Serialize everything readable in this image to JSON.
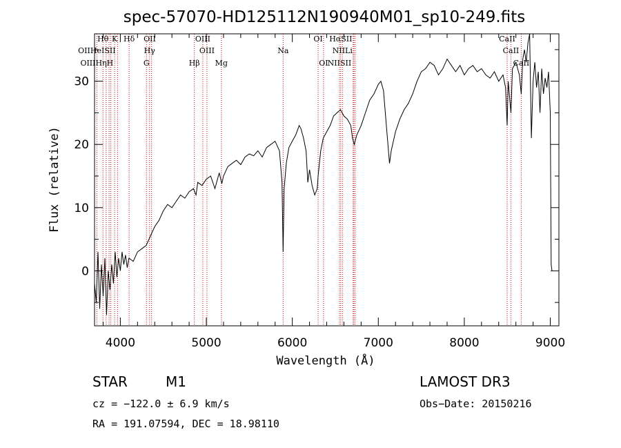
{
  "chart_data": {
    "type": "line",
    "title": "spec-57070-HD125112N190940M01_sp10-249.fits",
    "xlabel": "Wavelength (Å)",
    "ylabel": "Flux (relative)",
    "xlim": [
      3700,
      9100
    ],
    "ylim": [
      -8.7,
      37.5
    ],
    "xticks": [
      4000,
      5000,
      6000,
      7000,
      8000,
      9000
    ],
    "yticks": [
      0,
      10,
      20,
      30
    ],
    "grid": false,
    "legend": "none",
    "colors": {
      "spectrum": "#000000",
      "line_marker": "#cc0000",
      "axes": "#000000"
    },
    "spectrum_points": [
      [
        3700,
        -2
      ],
      [
        3720,
        -5
      ],
      [
        3740,
        3
      ],
      [
        3760,
        -6
      ],
      [
        3780,
        1
      ],
      [
        3800,
        -4
      ],
      [
        3820,
        2
      ],
      [
        3840,
        -7
      ],
      [
        3860,
        0
      ],
      [
        3880,
        -3
      ],
      [
        3900,
        1
      ],
      [
        3920,
        -2
      ],
      [
        3940,
        3
      ],
      [
        3960,
        -1
      ],
      [
        3980,
        2
      ],
      [
        4000,
        0
      ],
      [
        4020,
        3
      ],
      [
        4040,
        1
      ],
      [
        4060,
        2.5
      ],
      [
        4080,
        0.5
      ],
      [
        4100,
        2
      ],
      [
        4150,
        1.5
      ],
      [
        4200,
        3
      ],
      [
        4250,
        3.5
      ],
      [
        4300,
        4
      ],
      [
        4350,
        5.5
      ],
      [
        4400,
        7
      ],
      [
        4450,
        8
      ],
      [
        4500,
        9.5
      ],
      [
        4550,
        10.5
      ],
      [
        4600,
        10
      ],
      [
        4650,
        11
      ],
      [
        4700,
        12
      ],
      [
        4750,
        11.5
      ],
      [
        4800,
        12.5
      ],
      [
        4850,
        13
      ],
      [
        4880,
        12
      ],
      [
        4900,
        14
      ],
      [
        4950,
        13.5
      ],
      [
        5000,
        14.5
      ],
      [
        5050,
        15
      ],
      [
        5100,
        13
      ],
      [
        5150,
        15.5
      ],
      [
        5180,
        13.8
      ],
      [
        5200,
        15
      ],
      [
        5250,
        16.5
      ],
      [
        5300,
        17
      ],
      [
        5350,
        17.5
      ],
      [
        5400,
        16.8
      ],
      [
        5450,
        18
      ],
      [
        5500,
        18.5
      ],
      [
        5550,
        18.2
      ],
      [
        5600,
        19
      ],
      [
        5650,
        18
      ],
      [
        5700,
        19.5
      ],
      [
        5750,
        20
      ],
      [
        5800,
        20.5
      ],
      [
        5850,
        19
      ],
      [
        5880,
        14
      ],
      [
        5893,
        3
      ],
      [
        5905,
        13
      ],
      [
        5930,
        17
      ],
      [
        5960,
        19.5
      ],
      [
        6000,
        20.5
      ],
      [
        6040,
        21.5
      ],
      [
        6080,
        23
      ],
      [
        6100,
        22.5
      ],
      [
        6130,
        21
      ],
      [
        6160,
        19
      ],
      [
        6180,
        14
      ],
      [
        6200,
        16
      ],
      [
        6230,
        13.5
      ],
      [
        6260,
        12
      ],
      [
        6290,
        13
      ],
      [
        6300,
        15
      ],
      [
        6330,
        19
      ],
      [
        6360,
        21
      ],
      [
        6400,
        22
      ],
      [
        6440,
        23
      ],
      [
        6480,
        24.5
      ],
      [
        6520,
        25
      ],
      [
        6560,
        25.5
      ],
      [
        6600,
        24.5
      ],
      [
        6640,
        24
      ],
      [
        6680,
        23
      ],
      [
        6700,
        21
      ],
      [
        6720,
        20
      ],
      [
        6750,
        21.5
      ],
      [
        6800,
        23
      ],
      [
        6850,
        25
      ],
      [
        6900,
        27
      ],
      [
        6950,
        28
      ],
      [
        7000,
        29.5
      ],
      [
        7030,
        30
      ],
      [
        7060,
        28.5
      ],
      [
        7100,
        22
      ],
      [
        7130,
        17
      ],
      [
        7150,
        19
      ],
      [
        7200,
        22
      ],
      [
        7250,
        24
      ],
      [
        7300,
        25.5
      ],
      [
        7350,
        26.5
      ],
      [
        7400,
        28
      ],
      [
        7450,
        30
      ],
      [
        7500,
        31.5
      ],
      [
        7550,
        32
      ],
      [
        7600,
        33
      ],
      [
        7650,
        32.5
      ],
      [
        7700,
        31
      ],
      [
        7750,
        32
      ],
      [
        7800,
        33.5
      ],
      [
        7850,
        32.5
      ],
      [
        7900,
        31.5
      ],
      [
        7950,
        32.5
      ],
      [
        8000,
        31
      ],
      [
        8050,
        32
      ],
      [
        8100,
        32.5
      ],
      [
        8150,
        31.5
      ],
      [
        8200,
        32
      ],
      [
        8250,
        31
      ],
      [
        8300,
        30.5
      ],
      [
        8350,
        31.5
      ],
      [
        8400,
        30
      ],
      [
        8450,
        31
      ],
      [
        8480,
        29
      ],
      [
        8498,
        23
      ],
      [
        8510,
        30
      ],
      [
        8542,
        25
      ],
      [
        8560,
        32
      ],
      [
        8600,
        33
      ],
      [
        8640,
        31
      ],
      [
        8662,
        28
      ],
      [
        8680,
        33.5
      ],
      [
        8700,
        35
      ],
      [
        8720,
        33
      ],
      [
        8740,
        36
      ],
      [
        8760,
        37.5
      ],
      [
        8780,
        21
      ],
      [
        8800,
        30
      ],
      [
        8820,
        33
      ],
      [
        8840,
        29
      ],
      [
        8860,
        31.5
      ],
      [
        8880,
        25
      ],
      [
        8900,
        32
      ],
      [
        8920,
        28
      ],
      [
        8940,
        30.5
      ],
      [
        8960,
        29
      ],
      [
        8980,
        31.5
      ],
      [
        9000,
        25
      ],
      [
        9010,
        1
      ],
      [
        9020,
        0
      ]
    ],
    "spectral_lines": [
      {
        "label": "Hθ",
        "wavelength": 3798,
        "row": 0
      },
      {
        "label": "K",
        "wavelength": 3934,
        "row": 0
      },
      {
        "label": "Hδ",
        "wavelength": 4102,
        "row": 0
      },
      {
        "label": "OII",
        "wavelength": 4342,
        "row": 0
      },
      {
        "label": "OIII",
        "wavelength": 4959,
        "row": 0
      },
      {
        "label": "OI",
        "wavelength": 6300,
        "row": 0
      },
      {
        "label": "HαSII",
        "wavelength": 6563,
        "row": 0
      },
      {
        "label": "CaII",
        "wavelength": 8498,
        "row": 0
      },
      {
        "label": "OIIHeISII",
        "wavelength": 3727,
        "row": 1
      },
      {
        "label": "Hγ",
        "wavelength": 4340,
        "row": 1
      },
      {
        "label": "OIII",
        "wavelength": 5007,
        "row": 1
      },
      {
        "label": "Na",
        "wavelength": 5893,
        "row": 1
      },
      {
        "label": "NIILi",
        "wavelength": 6583,
        "row": 1
      },
      {
        "label": "CaII",
        "wavelength": 8542,
        "row": 1
      },
      {
        "label": "OIIIHηH",
        "wavelength": 3727,
        "row": 2
      },
      {
        "label": "G",
        "wavelength": 4304,
        "row": 2
      },
      {
        "label": "Hβ",
        "wavelength": 4861,
        "row": 2
      },
      {
        "label": "Mg",
        "wavelength": 5175,
        "row": 2
      },
      {
        "label": "OI",
        "wavelength": 6363,
        "row": 2
      },
      {
        "label": "NIISII",
        "wavelength": 6548,
        "row": 2
      },
      {
        "label": "CaII",
        "wavelength": 8662,
        "row": 2
      }
    ],
    "marker_wavelengths": [
      3727,
      3798,
      3835,
      3869,
      3889,
      3934,
      3968,
      4102,
      4304,
      4340,
      4363,
      4861,
      4959,
      5007,
      5175,
      5893,
      6300,
      6363,
      6548,
      6563,
      6583,
      6707,
      6716,
      6731,
      8498,
      8542,
      8662
    ]
  },
  "info": {
    "object_type": "STAR",
    "subclass": "M1",
    "survey": "LAMOST DR3",
    "cz": "cz = −122.0 ± 6.9 km/s",
    "obs_date": "Obs−Date: 20150216",
    "coords": "RA = 191.07594, DEC =  18.98110"
  }
}
